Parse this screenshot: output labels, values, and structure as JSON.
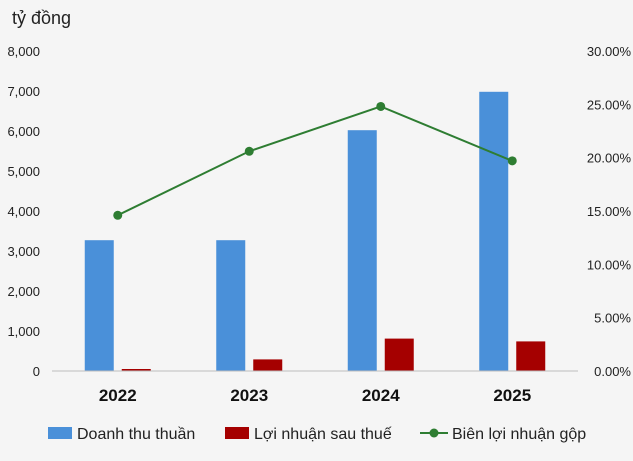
{
  "chart_data": {
    "type": "bar",
    "unit_label": "tỷ đồng",
    "categories": [
      "2022",
      "2023",
      "2024",
      "2025"
    ],
    "series": [
      {
        "name": "Doanh thu thuần",
        "type": "bar",
        "axis": "left",
        "color": "#4a90d9",
        "values": [
          3270,
          3270,
          6020,
          6980
        ]
      },
      {
        "name": "Lợi nhuận sau thuế",
        "type": "bar",
        "axis": "left",
        "color": "#a50000",
        "values": [
          50,
          290,
          810,
          740
        ]
      },
      {
        "name": "Biên lợi nhuận gộp",
        "type": "line",
        "axis": "right",
        "color": "#2e7d32",
        "values": [
          14.6,
          20.6,
          24.8,
          19.7
        ]
      }
    ],
    "left_axis": {
      "min": 0,
      "max": 8000,
      "ticks": [
        "0",
        "1,000",
        "2,000",
        "3,000",
        "4,000",
        "5,000",
        "6,000",
        "7,000",
        "8,000"
      ]
    },
    "right_axis": {
      "min": 0,
      "max": 30,
      "ticks": [
        "0.00%",
        "5.00%",
        "10.00%",
        "15.00%",
        "20.00%",
        "25.00%",
        "30.00%"
      ]
    },
    "grid": false,
    "legend_position": "bottom"
  }
}
